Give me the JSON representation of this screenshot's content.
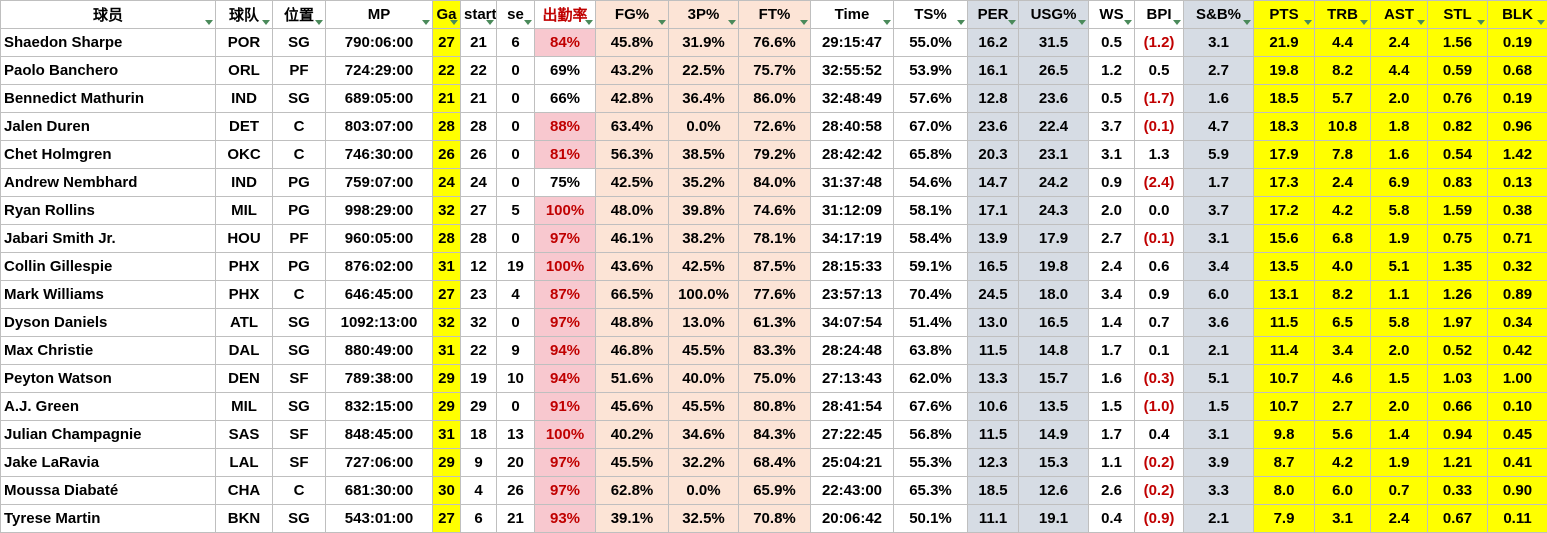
{
  "table": {
    "headers": [
      "球员",
      "球队",
      "位置",
      "MP",
      "Ga",
      "starts",
      "se",
      "出勤率",
      "FG%",
      "3P%",
      "FT%",
      "Time",
      "TS%",
      "PER",
      "USG%",
      "WS",
      "BPI",
      "S&B%",
      "PTS",
      "TRB",
      "AST",
      "STL",
      "BLK"
    ],
    "column_colors": [
      "#ffffff",
      "#ffffff",
      "#ffffff",
      "#ffffff",
      "#ffff00",
      "#ffffff",
      "#ffffff",
      "#ffffff",
      "#fce4d6",
      "#fce4d6",
      "#fce4d6",
      "#ffffff",
      "#ffffff",
      "#d6dce4",
      "#d6dce4",
      "#ffffff",
      "#ffffff",
      "#d6dce4",
      "#ffff00",
      "#ffff00",
      "#ffff00",
      "#ffff00",
      "#ffff00"
    ],
    "highlight_color": "#f8c8cf",
    "highlight_text_color": "#c00000",
    "rows": [
      [
        "Shaedon Sharpe",
        "POR",
        "SG",
        "790:06:00",
        "27",
        "21",
        "6",
        "84%",
        "45.8%",
        "31.9%",
        "76.6%",
        "29:15:47",
        "55.0%",
        "16.2",
        "31.5",
        "0.5",
        "(1.2)",
        "3.1",
        "21.9",
        "4.4",
        "2.4",
        "1.56",
        "0.19"
      ],
      [
        "Paolo Banchero",
        "ORL",
        "PF",
        "724:29:00",
        "22",
        "22",
        "0",
        "69%",
        "43.2%",
        "22.5%",
        "75.7%",
        "32:55:52",
        "53.9%",
        "16.1",
        "26.5",
        "1.2",
        "0.5",
        "2.7",
        "19.8",
        "8.2",
        "4.4",
        "0.59",
        "0.68"
      ],
      [
        "Bennedict Mathurin",
        "IND",
        "SG",
        "689:05:00",
        "21",
        "21",
        "0",
        "66%",
        "42.8%",
        "36.4%",
        "86.0%",
        "32:48:49",
        "57.6%",
        "12.8",
        "23.6",
        "0.5",
        "(1.7)",
        "1.6",
        "18.5",
        "5.7",
        "2.0",
        "0.76",
        "0.19"
      ],
      [
        "Jalen Duren",
        "DET",
        "C",
        "803:07:00",
        "28",
        "28",
        "0",
        "88%",
        "63.4%",
        "0.0%",
        "72.6%",
        "28:40:58",
        "67.0%",
        "23.6",
        "22.4",
        "3.7",
        "(0.1)",
        "4.7",
        "18.3",
        "10.8",
        "1.8",
        "0.82",
        "0.96"
      ],
      [
        "Chet Holmgren",
        "OKC",
        "C",
        "746:30:00",
        "26",
        "26",
        "0",
        "81%",
        "56.3%",
        "38.5%",
        "79.2%",
        "28:42:42",
        "65.8%",
        "20.3",
        "23.1",
        "3.1",
        "1.3",
        "5.9",
        "17.9",
        "7.8",
        "1.6",
        "0.54",
        "1.42"
      ],
      [
        "Andrew Nembhard",
        "IND",
        "PG",
        "759:07:00",
        "24",
        "24",
        "0",
        "75%",
        "42.5%",
        "35.2%",
        "84.0%",
        "31:37:48",
        "54.6%",
        "14.7",
        "24.2",
        "0.9",
        "(2.4)",
        "1.7",
        "17.3",
        "2.4",
        "6.9",
        "0.83",
        "0.13"
      ],
      [
        "Ryan Rollins",
        "MIL",
        "PG",
        "998:29:00",
        "32",
        "27",
        "5",
        "100%",
        "48.0%",
        "39.8%",
        "74.6%",
        "31:12:09",
        "58.1%",
        "17.1",
        "24.3",
        "2.0",
        "0.0",
        "3.7",
        "17.2",
        "4.2",
        "5.8",
        "1.59",
        "0.38"
      ],
      [
        "Jabari Smith Jr.",
        "HOU",
        "PF",
        "960:05:00",
        "28",
        "28",
        "0",
        "97%",
        "46.1%",
        "38.2%",
        "78.1%",
        "34:17:19",
        "58.4%",
        "13.9",
        "17.9",
        "2.7",
        "(0.1)",
        "3.1",
        "15.6",
        "6.8",
        "1.9",
        "0.75",
        "0.71"
      ],
      [
        "Collin Gillespie",
        "PHX",
        "PG",
        "876:02:00",
        "31",
        "12",
        "19",
        "100%",
        "43.6%",
        "42.5%",
        "87.5%",
        "28:15:33",
        "59.1%",
        "16.5",
        "19.8",
        "2.4",
        "0.6",
        "3.4",
        "13.5",
        "4.0",
        "5.1",
        "1.35",
        "0.32"
      ],
      [
        "Mark Williams",
        "PHX",
        "C",
        "646:45:00",
        "27",
        "23",
        "4",
        "87%",
        "66.5%",
        "100.0%",
        "77.6%",
        "23:57:13",
        "70.4%",
        "24.5",
        "18.0",
        "3.4",
        "0.9",
        "6.0",
        "13.1",
        "8.2",
        "1.1",
        "1.26",
        "0.89"
      ],
      [
        "Dyson Daniels",
        "ATL",
        "SG",
        "1092:13:00",
        "32",
        "32",
        "0",
        "97%",
        "48.8%",
        "13.0%",
        "61.3%",
        "34:07:54",
        "51.4%",
        "13.0",
        "16.5",
        "1.4",
        "0.7",
        "3.6",
        "11.5",
        "6.5",
        "5.8",
        "1.97",
        "0.34"
      ],
      [
        "Max Christie",
        "DAL",
        "SG",
        "880:49:00",
        "31",
        "22",
        "9",
        "94%",
        "46.8%",
        "45.5%",
        "83.3%",
        "28:24:48",
        "63.8%",
        "11.5",
        "14.8",
        "1.7",
        "0.1",
        "2.1",
        "11.4",
        "3.4",
        "2.0",
        "0.52",
        "0.42"
      ],
      [
        "Peyton Watson",
        "DEN",
        "SF",
        "789:38:00",
        "29",
        "19",
        "10",
        "94%",
        "51.6%",
        "40.0%",
        "75.0%",
        "27:13:43",
        "62.0%",
        "13.3",
        "15.7",
        "1.6",
        "(0.3)",
        "5.1",
        "10.7",
        "4.6",
        "1.5",
        "1.03",
        "1.00"
      ],
      [
        "A.J. Green",
        "MIL",
        "SG",
        "832:15:00",
        "29",
        "29",
        "0",
        "91%",
        "45.6%",
        "45.5%",
        "80.8%",
        "28:41:54",
        "67.6%",
        "10.6",
        "13.5",
        "1.5",
        "(1.0)",
        "1.5",
        "10.7",
        "2.7",
        "2.0",
        "0.66",
        "0.10"
      ],
      [
        "Julian Champagnie",
        "SAS",
        "SF",
        "848:45:00",
        "31",
        "18",
        "13",
        "100%",
        "40.2%",
        "34.6%",
        "84.3%",
        "27:22:45",
        "56.8%",
        "11.5",
        "14.9",
        "1.7",
        "0.4",
        "3.1",
        "9.8",
        "5.6",
        "1.4",
        "0.94",
        "0.45"
      ],
      [
        "Jake LaRavia",
        "LAL",
        "SF",
        "727:06:00",
        "29",
        "9",
        "20",
        "97%",
        "45.5%",
        "32.2%",
        "68.4%",
        "25:04:21",
        "55.3%",
        "12.3",
        "15.3",
        "1.1",
        "(0.2)",
        "3.9",
        "8.7",
        "4.2",
        "1.9",
        "1.21",
        "0.41"
      ],
      [
        "Moussa Diabaté",
        "CHA",
        "C",
        "681:30:00",
        "30",
        "4",
        "26",
        "97%",
        "62.8%",
        "0.0%",
        "65.9%",
        "22:43:00",
        "65.3%",
        "18.5",
        "12.6",
        "2.6",
        "(0.2)",
        "3.3",
        "8.0",
        "6.0",
        "0.7",
        "0.33",
        "0.90"
      ],
      [
        "Tyrese Martin",
        "BKN",
        "SG",
        "543:01:00",
        "27",
        "6",
        "21",
        "93%",
        "39.1%",
        "32.5%",
        "70.8%",
        "20:06:42",
        "50.1%",
        "11.1",
        "19.1",
        "0.4",
        "(0.9)",
        "2.1",
        "7.9",
        "3.1",
        "2.4",
        "0.67",
        "0.11"
      ]
    ]
  }
}
